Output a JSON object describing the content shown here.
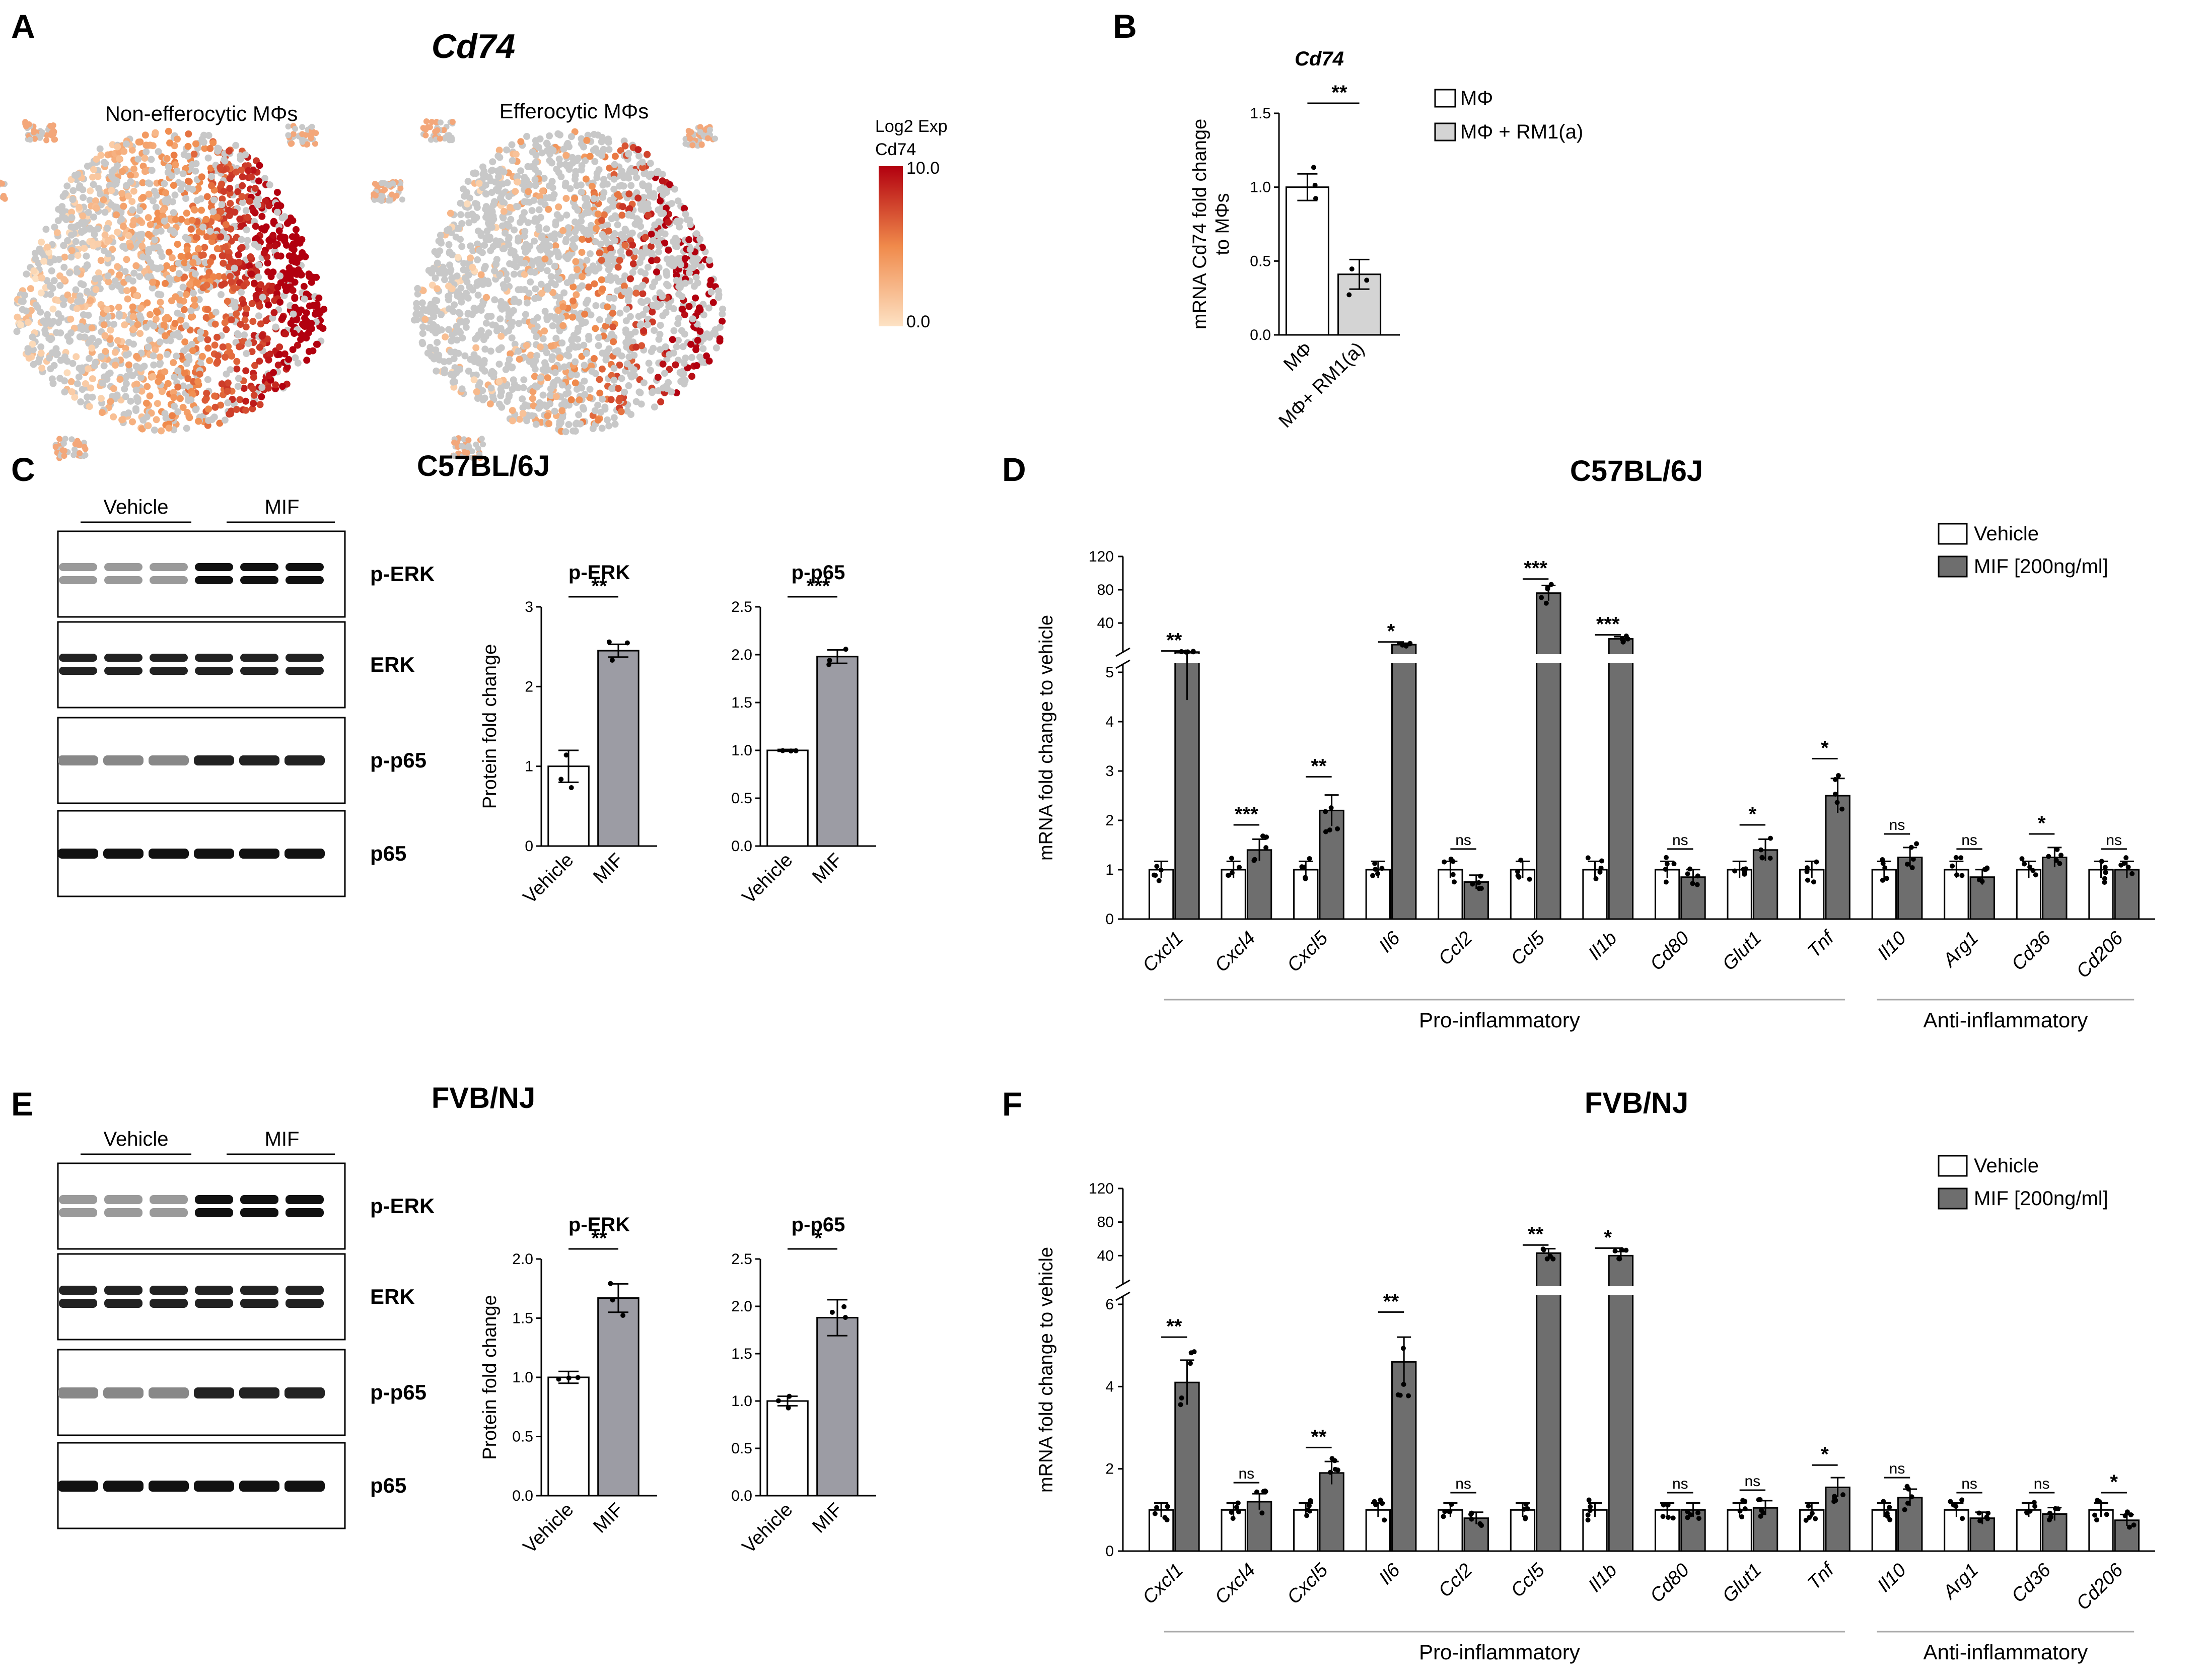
{
  "panels": {
    "A": "A",
    "B": "B",
    "C": "C",
    "D": "D",
    "E": "E",
    "F": "F"
  },
  "panelA": {
    "gene": "Cd74",
    "left_title": "Non-efferocytic MΦs",
    "right_title": "Efferocytic MΦs",
    "colorbar": {
      "title1": "Log2 Exp",
      "title2": "Cd74",
      "max_label": "10.0",
      "min_label": "0.0",
      "low_color": "#fde2c4",
      "high_color": "#b2000f"
    }
  },
  "panelB": {
    "title": "Cd74",
    "ylabel1": "mRNA Cd74 fold change",
    "ylabel2": "to MΦs",
    "legend": [
      "MΦ",
      "MΦ + RM1(a)"
    ],
    "chart_data": {
      "type": "bar",
      "title": "Cd74",
      "categories": [
        "MΦ",
        "MΦ+ RM1(a)"
      ],
      "values": [
        1.0,
        0.41
      ],
      "errors": [
        0.09,
        0.1
      ],
      "ylim": [
        0,
        1.5
      ],
      "yticks": [
        "0.0",
        "0.5",
        "1.0",
        "1.5"
      ],
      "ylabel": "mRNA Cd74 fold change to MΦs",
      "significance": "**",
      "colors": [
        "#ffffff",
        "#d4d4d4"
      ]
    }
  },
  "panelC": {
    "strain": "C57BL/6J",
    "group1": "Vehicle",
    "group2": "MIF",
    "blots": [
      "p-ERK",
      "ERK",
      "p-p65",
      "p65"
    ],
    "charts": [
      {
        "type": "bar",
        "title": "p-ERK",
        "categories": [
          "Vehicle",
          "MIF"
        ],
        "values": [
          1.0,
          2.45
        ],
        "errors": [
          0.2,
          0.08
        ],
        "ylim": [
          0,
          3
        ],
        "yticks": [
          "0",
          "1",
          "2",
          "3"
        ],
        "ylabel": "Protein fold change",
        "significance": "**"
      },
      {
        "type": "bar",
        "title": "p-p65",
        "categories": [
          "Vehicle",
          "MIF"
        ],
        "values": [
          1.0,
          1.98
        ],
        "errors": [
          0.01,
          0.07
        ],
        "ylim": [
          0,
          2.5
        ],
        "yticks": [
          "0.0",
          "0.5",
          "1.0",
          "1.5",
          "2.0",
          "2.5"
        ],
        "ylabel": "",
        "significance": "***"
      }
    ]
  },
  "panelD": {
    "strain": "C57BL/6J",
    "ylabel": "mRNA fold change to vehicle",
    "legend": [
      "Vehicle",
      "MIF [200ng/ml]"
    ],
    "group_labels": [
      "Pro-inflammatory",
      "Anti-inflammatory"
    ],
    "chart_data": {
      "type": "bar",
      "categories": [
        "Cxcl1",
        "Cxcl4",
        "Cxcl5",
        "Il6",
        "Ccl2",
        "Ccl5",
        "Il1b",
        "Cd80",
        "Glut1",
        "Tnf",
        "Il10",
        "Arg1",
        "Cd36",
        "Cd206"
      ],
      "series": [
        {
          "name": "Vehicle",
          "values": [
            1,
            1,
            1,
            1,
            1,
            1,
            1,
            1,
            1,
            1,
            1,
            1,
            1,
            1
          ]
        },
        {
          "name": "MIF [200ng/ml]",
          "values": [
            5.1,
            1.4,
            2.2,
            14,
            0.75,
            76,
            21,
            0.85,
            1.4,
            2.5,
            1.25,
            0.85,
            1.25,
            1.0
          ]
        }
      ],
      "significance": [
        "**",
        "***",
        "**",
        "*",
        "ns",
        "***",
        "***",
        "ns",
        "*",
        "*",
        "ns",
        "ns",
        "*",
        "ns"
      ],
      "yticks_lower": [
        "0",
        "1",
        "2",
        "3",
        "4",
        "5"
      ],
      "yticks_upper": [
        "40",
        "80",
        "120"
      ],
      "axis_break": [
        5,
        5
      ],
      "ylim": [
        0,
        120
      ]
    }
  },
  "panelE": {
    "strain": "FVB/NJ",
    "group1": "Vehicle",
    "group2": "MIF",
    "blots": [
      "p-ERK",
      "ERK",
      "p-p65",
      "p65"
    ],
    "charts": [
      {
        "type": "bar",
        "title": "p-ERK",
        "categories": [
          "Vehicle",
          "MIF"
        ],
        "values": [
          1.0,
          1.67
        ],
        "errors": [
          0.05,
          0.12
        ],
        "ylim": [
          0,
          2
        ],
        "yticks": [
          "0.0",
          "0.5",
          "1.0",
          "1.5",
          "2.0"
        ],
        "ylabel": "Protein fold change",
        "significance": "**"
      },
      {
        "type": "bar",
        "title": "p-p65",
        "categories": [
          "Vehicle",
          "MIF"
        ],
        "values": [
          1.0,
          1.88
        ],
        "errors": [
          0.05,
          0.19
        ],
        "ylim": [
          0,
          2.5
        ],
        "yticks": [
          "0.0",
          "0.5",
          "1.0",
          "1.5",
          "2.0",
          "2.5"
        ],
        "ylabel": "",
        "significance": "*"
      }
    ]
  },
  "panelF": {
    "strain": "FVB/NJ",
    "ylabel": "mRNA fold change to vehicle",
    "legend": [
      "Vehicle",
      "MIF [200ng/ml]"
    ],
    "group_labels": [
      "Pro-inflammatory",
      "Anti-inflammatory"
    ],
    "chart_data": {
      "type": "bar",
      "categories": [
        "Cxcl1",
        "Cxcl4",
        "Cxcl5",
        "Il6",
        "Ccl2",
        "Ccl5",
        "Il1b",
        "Cd80",
        "Glut1",
        "Tnf",
        "Il10",
        "Arg1",
        "Cd36",
        "Cd206"
      ],
      "series": [
        {
          "name": "Vehicle",
          "values": [
            1,
            1,
            1,
            1,
            1,
            1,
            1,
            1,
            1,
            1,
            1,
            1,
            1,
            1
          ]
        },
        {
          "name": "MIF [200ng/ml]",
          "values": [
            4.1,
            1.2,
            1.9,
            4.6,
            0.8,
            43,
            40,
            1.0,
            1.05,
            1.55,
            1.3,
            0.8,
            0.9,
            0.75
          ]
        }
      ],
      "significance": [
        "**",
        "ns",
        "**",
        "**",
        "ns",
        "**",
        "*",
        "ns",
        "ns",
        "*",
        "ns",
        "ns",
        "ns",
        "*"
      ],
      "yticks_lower": [
        "0",
        "2",
        "4",
        "6"
      ],
      "yticks_upper": [
        "40",
        "80",
        "120"
      ],
      "axis_break": [
        6,
        6
      ],
      "ylim": [
        0,
        120
      ]
    }
  }
}
